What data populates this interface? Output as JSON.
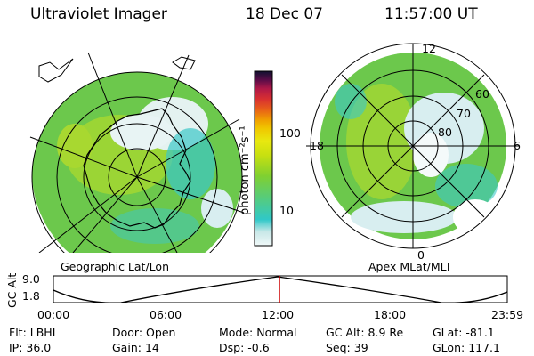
{
  "header": {
    "title": "Ultraviolet Imager",
    "date": "18 Dec 07",
    "time": "11:57:00 UT"
  },
  "left_panel": {
    "caption": "Geographic Lat/Lon"
  },
  "right_panel": {
    "caption": "Apex MLat/MLT",
    "mlt_labels": [
      "12",
      "18",
      "6",
      "0"
    ],
    "lat_labels": [
      "60",
      "70",
      "80"
    ]
  },
  "colorbar": {
    "unit_label": "photon cm⁻²s⁻¹",
    "tick_labels": [
      "100",
      "10"
    ],
    "colors": [
      "#f0f8f8",
      "#c8e8e8",
      "#7fd8d8",
      "#30c8c8",
      "#58cc78",
      "#80d030",
      "#a8d818",
      "#c8e010",
      "#e8e810",
      "#f0c800",
      "#f0a000",
      "#e86018",
      "#d83030",
      "#b01848",
      "#7a1050",
      "#3a0840",
      "#101030"
    ]
  },
  "timeline": {
    "ylabel": "GC Alt",
    "y_ticks": [
      "9.0",
      "1.8"
    ],
    "x_ticks": [
      "00:00",
      "06:00",
      "12:00",
      "18:00",
      "23:59"
    ],
    "marker_color": "#cc0000"
  },
  "footer": {
    "row1": [
      {
        "label": "Flt:",
        "value": "LBHL"
      },
      {
        "label": "Door:",
        "value": "Open"
      },
      {
        "label": "Mode:",
        "value": "Normal"
      },
      {
        "label": "GC Alt:",
        "value": "8.9 Re"
      },
      {
        "label": "GLat:",
        "value": "-81.1"
      }
    ],
    "row2": [
      {
        "label": "IP:",
        "value": "36.0"
      },
      {
        "label": "Gain:",
        "value": "14"
      },
      {
        "label": "Dsp:",
        "value": "-0.6"
      },
      {
        "label": "Seq:",
        "value": "39"
      },
      {
        "label": "GLon:",
        "value": "117.1"
      }
    ]
  },
  "image_colors": {
    "green": "#6cc84c",
    "yellow_green": "#a8d830",
    "cyan": "#3cc8c8",
    "pale": "#d8eef0"
  }
}
